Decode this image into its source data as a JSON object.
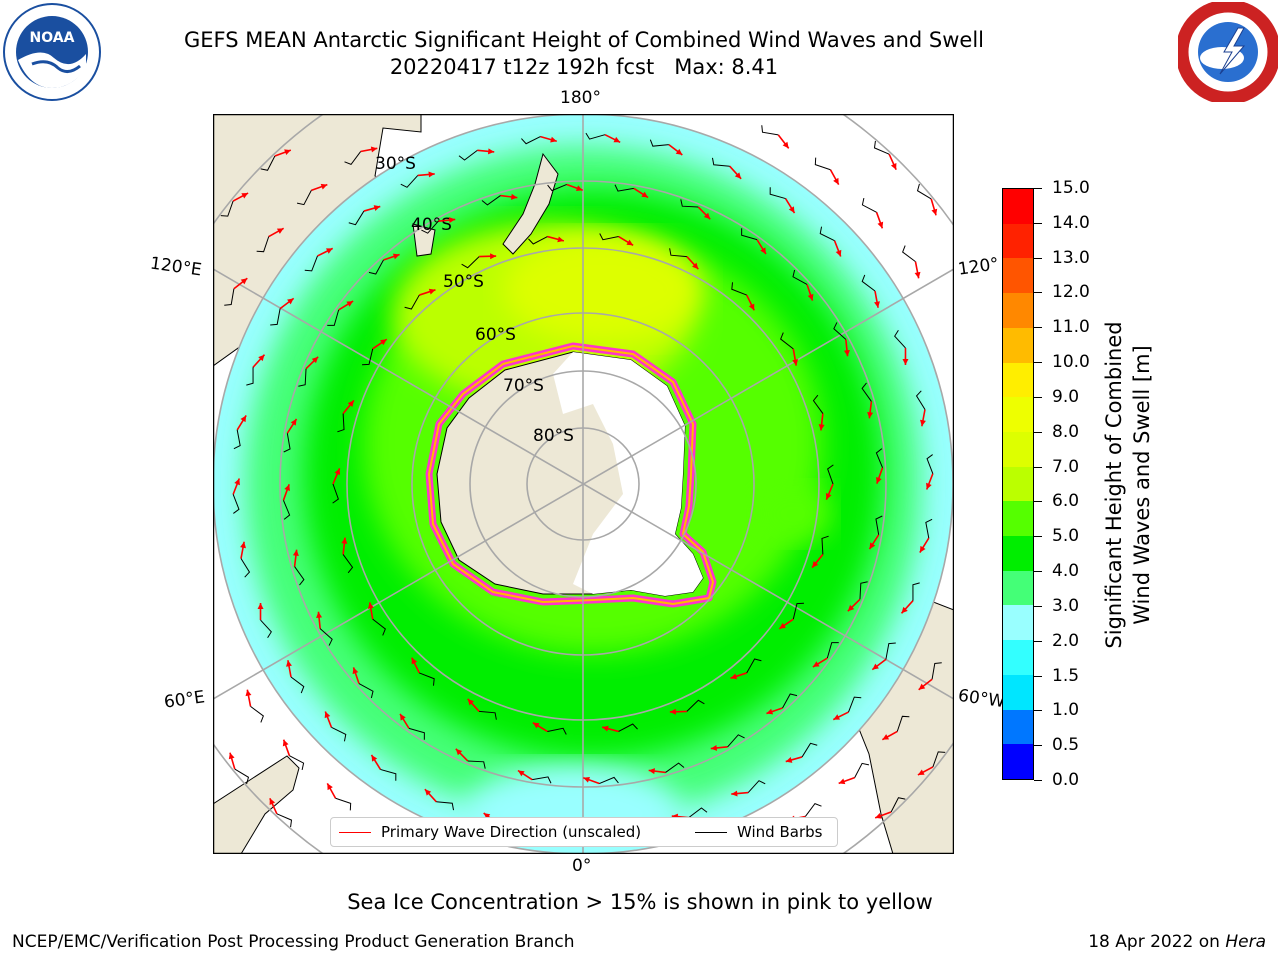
{
  "title": {
    "line1": "GEFS MEAN Antarctic Significant Height of Combined Wind Waves and Swell",
    "line2": "20220417 t12z 192h fcst   Max: 8.41"
  },
  "logos": {
    "left": "noaa-logo",
    "right": "national-weather-service-logo"
  },
  "map": {
    "projection": "south-polar-stereographic",
    "longitude_labels": {
      "top": "180°",
      "bottom": "0°",
      "left_upper": "120°E",
      "left_lower": "60°E",
      "right_upper": "120°",
      "right_lower": "60°W"
    },
    "latitude_labels": [
      "30°S",
      "40°S",
      "50°S",
      "60°S",
      "70°S",
      "80°S"
    ],
    "colors": {
      "land": "#ede8d6",
      "ice_shelf": "#ffffff",
      "sea_ice_edge": "#ff33cc",
      "arrow": "#ff0000",
      "barb": "#000000",
      "graticule": "#a8a8a8"
    }
  },
  "legend": {
    "primary_wave": "Primary Wave Direction (unscaled)",
    "wind_barbs": "Wind Barbs",
    "primary_wave_color": "#ff0000",
    "wind_barbs_color": "#000000"
  },
  "colorbar": {
    "label_line1": "Significant Height of Combined",
    "label_line2": "Wind Waves and Swell [m]",
    "ticks": [
      "0.0",
      "0.5",
      "1.0",
      "1.5",
      "2.0",
      "3.0",
      "4.0",
      "5.0",
      "6.0",
      "7.0",
      "8.0",
      "9.0",
      "10.0",
      "11.0",
      "12.0",
      "13.0",
      "14.0",
      "15.0"
    ],
    "colors": [
      "#0000ff",
      "#0077ff",
      "#00e6ff",
      "#33ffff",
      "#99ffff",
      "#44ff77",
      "#00ee00",
      "#55ff00",
      "#bbff00",
      "#ddff00",
      "#eeff00",
      "#ffee00",
      "#ffbb00",
      "#ff8800",
      "#ff5500",
      "#ff2200",
      "#ff0000"
    ]
  },
  "note": "Sea Ice Concentration > 15% is shown in pink to yellow",
  "footer": {
    "left": "NCEP/EMC/Verification Post Processing Product Generation Branch",
    "right_date": "18 Apr 2022 on ",
    "right_host": "Hera"
  }
}
